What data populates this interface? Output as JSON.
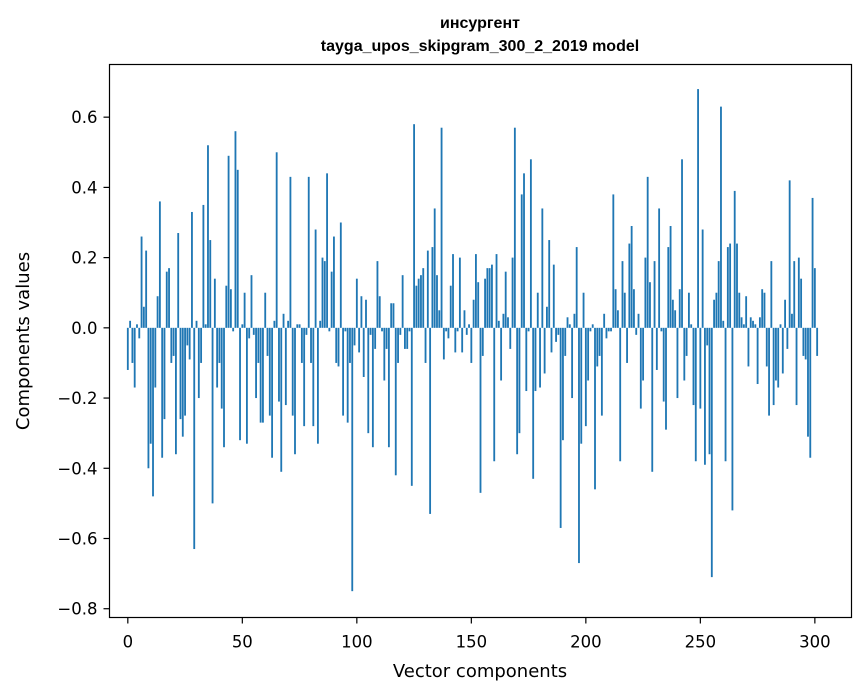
{
  "chart_data": {
    "type": "bar",
    "title_line1": "инсургент",
    "title_line2": "tayga_upos_skipgram_300_2_2019 model",
    "xlabel": "Vector components",
    "ylabel": "Components values",
    "xlim": [
      -8,
      316
    ],
    "ylim": [
      -0.825,
      0.75
    ],
    "xticks": [
      0,
      50,
      100,
      150,
      200,
      250,
      300
    ],
    "xtick_labels": [
      "0",
      "50",
      "100",
      "150",
      "200",
      "250",
      "300"
    ],
    "yticks": [
      -0.8,
      -0.6,
      -0.4,
      -0.2,
      0.0,
      0.2,
      0.4,
      0.6
    ],
    "ytick_labels": [
      "−0.8",
      "−0.6",
      "−0.4",
      "−0.2",
      "0.0",
      "0.2",
      "0.4",
      "0.6"
    ],
    "bar_color": "#1f77b4",
    "values": [
      -0.12,
      0.02,
      -0.1,
      -0.17,
      0.01,
      -0.03,
      0.26,
      0.06,
      0.22,
      -0.4,
      -0.33,
      -0.48,
      -0.17,
      0.09,
      0.36,
      -0.37,
      -0.26,
      0.16,
      0.17,
      -0.1,
      -0.08,
      -0.36,
      0.27,
      -0.26,
      -0.31,
      -0.25,
      -0.05,
      -0.09,
      0.33,
      -0.63,
      0.02,
      -0.2,
      -0.1,
      0.35,
      0.01,
      0.52,
      0.25,
      -0.5,
      0.14,
      -0.17,
      -0.1,
      -0.23,
      -0.34,
      0.12,
      0.49,
      0.11,
      -0.01,
      0.56,
      0.45,
      -0.32,
      0.01,
      0.1,
      -0.33,
      -0.03,
      0.15,
      -0.02,
      -0.2,
      -0.1,
      -0.27,
      -0.27,
      0.1,
      -0.08,
      -0.25,
      -0.37,
      0.02,
      0.5,
      -0.21,
      -0.41,
      0.04,
      -0.22,
      0.02,
      0.43,
      -0.25,
      -0.36,
      0.01,
      0.01,
      -0.1,
      -0.28,
      -0.02,
      0.43,
      -0.1,
      -0.28,
      0.28,
      -0.33,
      0.02,
      0.2,
      0.19,
      0.44,
      -0.01,
      0.16,
      0.26,
      -0.1,
      -0.11,
      0.3,
      -0.25,
      -0.01,
      -0.27,
      -0.1,
      -0.75,
      -0.05,
      0.14,
      -0.07,
      0.09,
      -0.14,
      0.08,
      -0.3,
      -0.02,
      -0.34,
      -0.06,
      0.19,
      0.09,
      -0.01,
      -0.15,
      -0.06,
      -0.34,
      0.07,
      0.07,
      -0.42,
      -0.1,
      -0.02,
      0.15,
      -0.06,
      -0.06,
      -0.01,
      -0.45,
      0.58,
      0.12,
      0.14,
      0.15,
      0.17,
      -0.1,
      0.22,
      -0.53,
      0.23,
      0.34,
      0.15,
      0.05,
      0.57,
      -0.09,
      -0.01,
      -0.03,
      0.12,
      0.21,
      -0.07,
      -0.01,
      0.2,
      -0.07,
      0.05,
      -0.02,
      0.01,
      -0.1,
      0.08,
      0.21,
      0.13,
      -0.47,
      -0.08,
      0.14,
      0.17,
      0.17,
      0.18,
      -0.38,
      0.21,
      0.02,
      -0.15,
      0.04,
      0.16,
      0.03,
      -0.06,
      0.2,
      0.57,
      -0.36,
      -0.3,
      0.38,
      0.44,
      -0.18,
      -0.01,
      0.48,
      -0.43,
      -0.18,
      0.1,
      -0.17,
      0.34,
      -0.13,
      0.06,
      0.25,
      -0.07,
      0.18,
      -0.04,
      -0.02,
      -0.57,
      -0.32,
      -0.08,
      0.03,
      0.01,
      -0.2,
      0.04,
      0.23,
      -0.67,
      -0.33,
      0.1,
      -0.28,
      -0.15,
      -0.01,
      0.01,
      -0.46,
      -0.11,
      -0.08,
      -0.25,
      0.04,
      -0.03,
      -0.01,
      -0.01,
      0.38,
      0.11,
      0.05,
      -0.38,
      0.19,
      0.1,
      -0.1,
      0.24,
      0.29,
      0.11,
      -0.02,
      0.04,
      -0.23,
      -0.15,
      0.2,
      0.43,
      0.13,
      -0.41,
      0.19,
      -0.12,
      0.34,
      -0.01,
      -0.21,
      -0.29,
      0.23,
      0.29,
      0.08,
      0.05,
      -0.2,
      0.11,
      0.48,
      -0.15,
      -0.08,
      0.1,
      0.01,
      -0.22,
      -0.38,
      0.68,
      -0.23,
      0.28,
      -0.39,
      -0.05,
      -0.36,
      -0.71,
      0.08,
      0.1,
      0.19,
      0.63,
      0.02,
      -0.38,
      0.23,
      0.24,
      -0.52,
      0.39,
      0.24,
      0.1,
      0.03,
      0.01,
      0.09,
      -0.11,
      0.03,
      0.02,
      0.01,
      -0.16,
      0.03,
      0.11,
      0.1,
      -0.11,
      -0.25,
      0.19,
      -0.22,
      -0.15,
      -0.17,
      0.01,
      -0.13,
      0.08,
      -0.06,
      0.42,
      0.04,
      0.19,
      -0.22,
      0.2,
      0.14,
      -0.08,
      -0.09,
      -0.31,
      -0.37,
      0.37,
      0.17,
      -0.08
    ]
  }
}
